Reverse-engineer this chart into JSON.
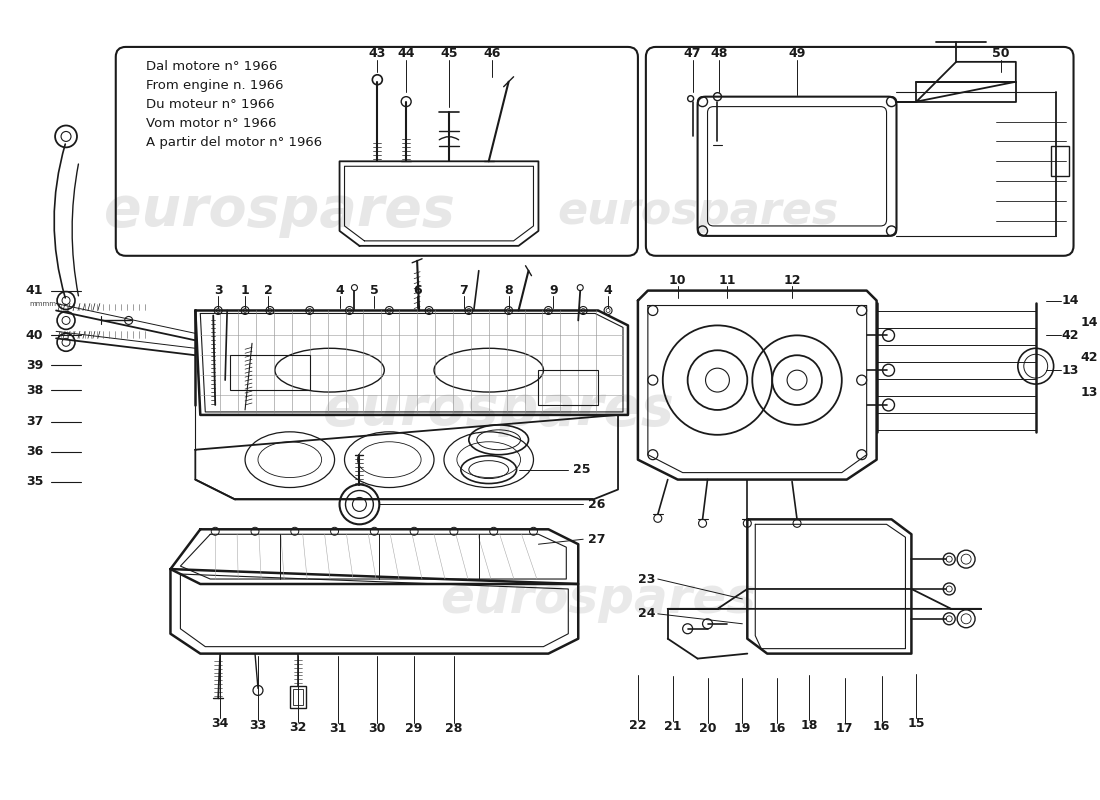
{
  "background_color": "#ffffff",
  "line_color": "#1a1a1a",
  "watermark_color": "#d0d0d0",
  "watermark_text": "eurospares",
  "note_lines": [
    "Dal motore n° 1966",
    "From engine n. 1966",
    "Du moteur n° 1966",
    "Vom motor n° 1966",
    "A partir del motor n° 1966"
  ],
  "figsize": [
    11.0,
    8.0
  ],
  "dpi": 100
}
